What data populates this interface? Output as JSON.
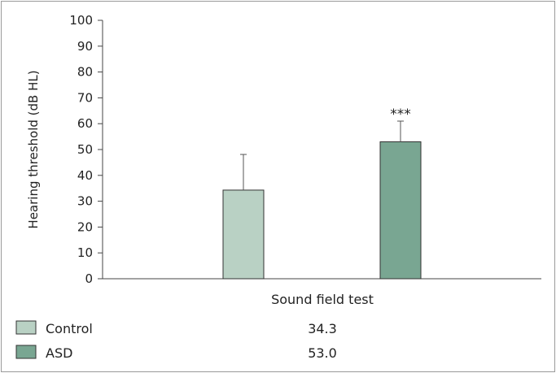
{
  "chart_data": {
    "type": "bar",
    "title": "",
    "xlabel": "Sound field test",
    "ylabel": "Hearing threshold (dB HL)",
    "ylim": [
      0,
      100
    ],
    "yticks": [
      0,
      10,
      20,
      30,
      40,
      50,
      60,
      70,
      80,
      90,
      100
    ],
    "categories": [
      "Sound field test"
    ],
    "series": [
      {
        "name": "Control",
        "values": [
          34.3
        ],
        "error": [
          13.8
        ],
        "color": "#b9d1c4"
      },
      {
        "name": "ASD",
        "values": [
          53.0
        ],
        "error": [
          8.0
        ],
        "color": "#79a692",
        "annotation": "***"
      }
    ],
    "legend": {
      "position": "bottom",
      "rows": [
        {
          "label": "Control",
          "value": "34.3"
        },
        {
          "label": "ASD",
          "value": "53.0"
        }
      ]
    },
    "grid": false
  }
}
